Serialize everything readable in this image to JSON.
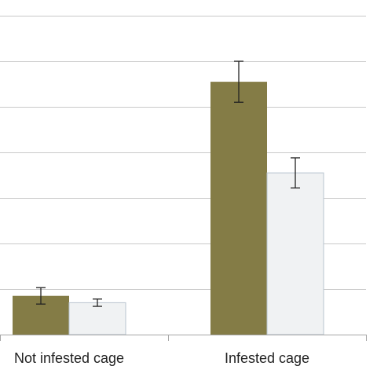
{
  "chart_data": {
    "type": "bar",
    "categories": [
      "Not infested cage",
      "Infested cage"
    ],
    "series": [
      {
        "values": [
          8.5,
          55.5
        ],
        "error": [
          1.8,
          4.5
        ],
        "color": "#847c46"
      },
      {
        "values": [
          7.0,
          35.5
        ],
        "error": [
          0.8,
          3.3
        ],
        "color": "#f0f2f3"
      }
    ],
    "ylim": [
      0,
      70
    ],
    "ytick_step": 10,
    "grid": true,
    "legend": "none",
    "colors": {
      "grid": "#c9c9c9",
      "axis": "#a6a6a6",
      "bar_border": "#b8c4cf",
      "error_bar": "#222222"
    }
  }
}
